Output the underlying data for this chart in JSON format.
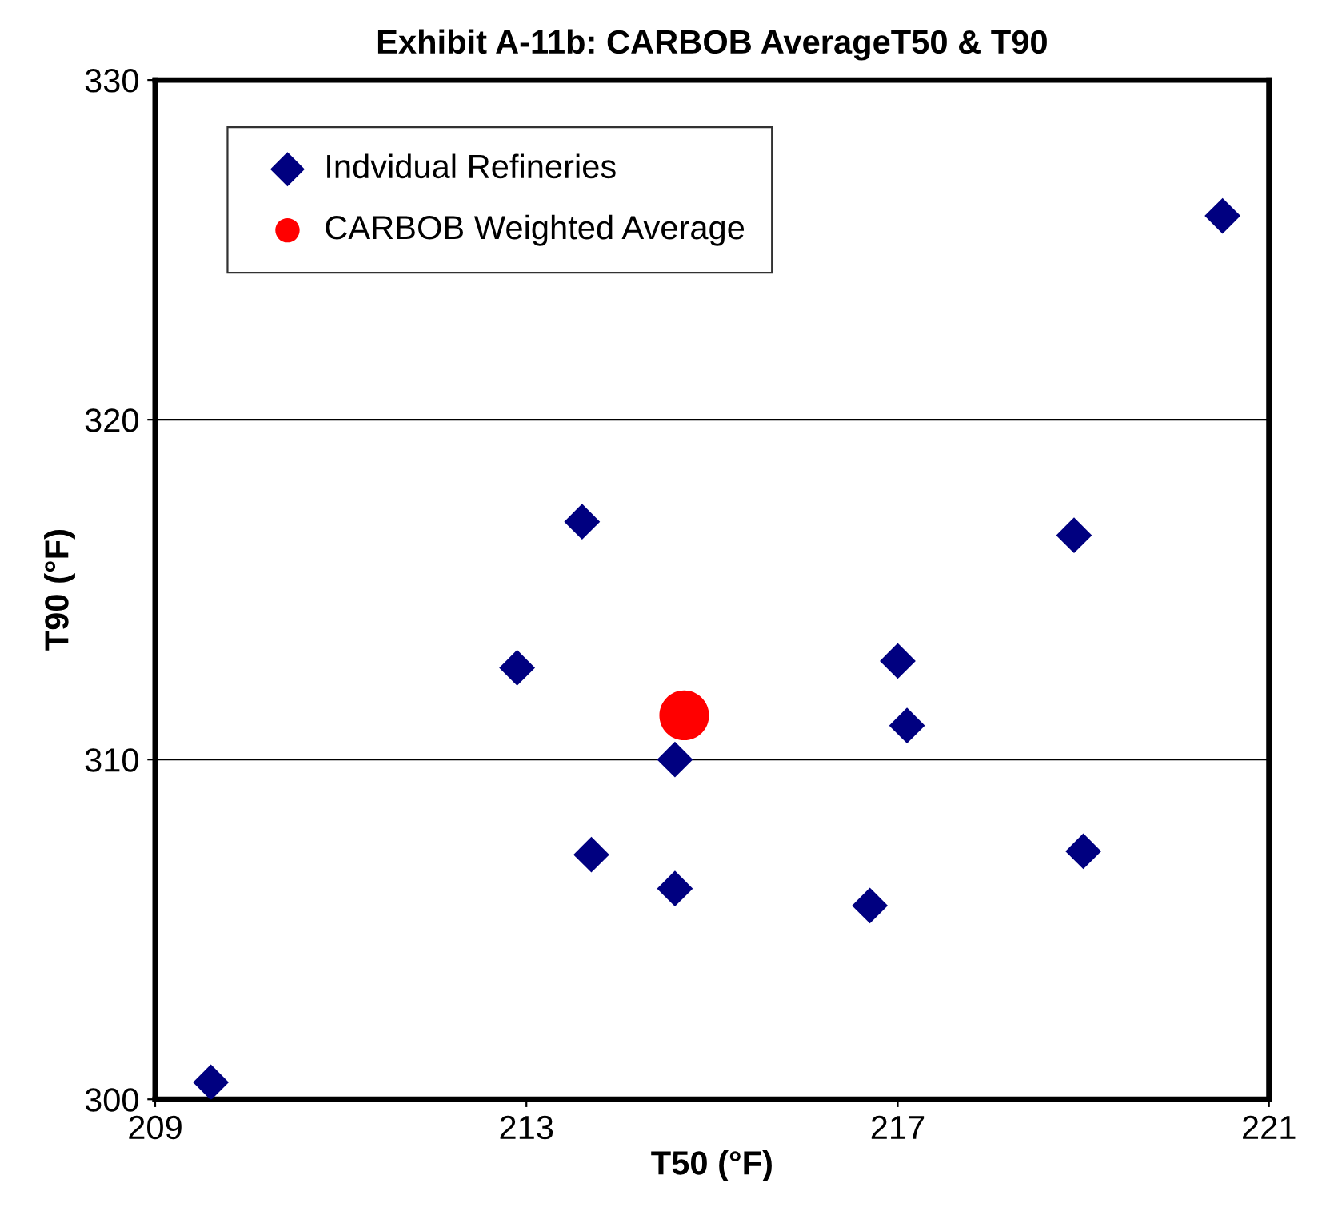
{
  "chart_data": {
    "type": "scatter",
    "title": "Exhibit A-11b: CARBOB AverageT50 & T90",
    "xlabel": "T50 (°F)",
    "ylabel": "T90 (°F)",
    "xlim": [
      209,
      221
    ],
    "xticks": [
      209,
      213,
      217,
      221
    ],
    "ylim": [
      300,
      330
    ],
    "yticks": [
      300,
      310,
      320,
      330
    ],
    "grid": "y",
    "legend": "top left",
    "series": [
      {
        "name": "Indvidual Refineries",
        "color": "#000080",
        "marker": "diamond",
        "x": [
          209.6,
          212.9,
          213.6,
          213.7,
          214.6,
          214.6,
          216.7,
          217.0,
          217.1,
          218.9,
          219.0,
          220.5
        ],
        "values": [
          300.5,
          312.7,
          317.0,
          307.2,
          310.0,
          306.2,
          305.7,
          312.9,
          311.0,
          316.6,
          307.3,
          326.0
        ]
      },
      {
        "name": "CARBOB Weighted Average",
        "color": "#ff0000",
        "marker": "circle",
        "x": [
          214.7
        ],
        "values": [
          311.3
        ]
      }
    ]
  }
}
